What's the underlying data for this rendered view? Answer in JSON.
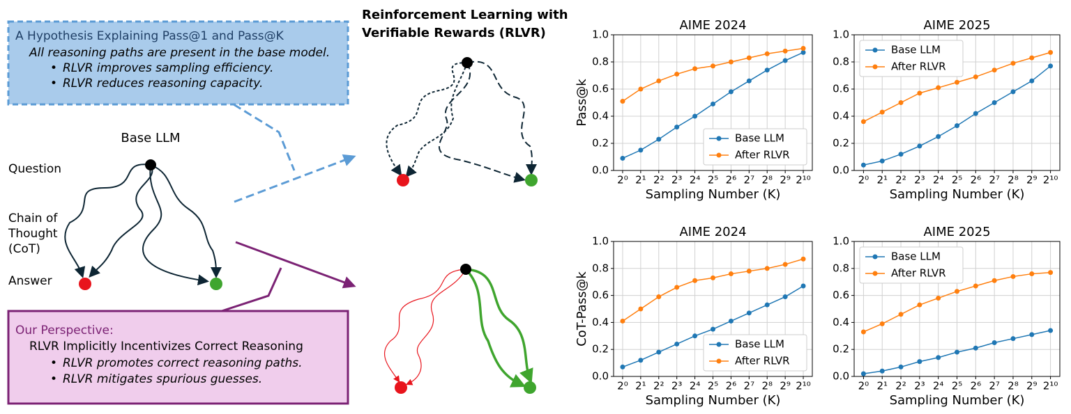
{
  "diagram": {
    "hypothesis": {
      "title": "A Hypothesis Explaining Pass@1 and Pass@K",
      "line": "All reasoning paths are present in the base model.",
      "bullets": [
        "RLVR improves sampling efficiency.",
        "RLVR reduces reasoning capacity."
      ]
    },
    "rlvr_title": [
      "Reinforcement Learning with",
      "Verifiable Rewards (RLVR)"
    ],
    "base_llm": "Base LLM",
    "labels": {
      "question": "Question",
      "cot": [
        "Chain of",
        "Thought",
        "(CoT)"
      ],
      "answer": "Answer"
    },
    "perspective": {
      "title": "Our Perspective:",
      "line": "RLVR Implicitly Incentivizes Correct Reasoning",
      "bullets": [
        "RLVR promotes correct reasoning paths.",
        "RLVR mitigates spurious guesses."
      ]
    }
  },
  "chart_data": [
    {
      "type": "line",
      "title": "AIME 2024",
      "ylabel": "Pass@k",
      "xlabel": "Sampling Number (K)",
      "xscale": "log2",
      "grid": true,
      "legend": "lower right",
      "x": [
        1,
        2,
        4,
        8,
        16,
        32,
        64,
        128,
        256,
        512,
        1024
      ],
      "xlim": [
        0.7071,
        1448.15
      ],
      "xticks": [
        {
          "value": 1,
          "label": "2⁰"
        },
        {
          "value": 2,
          "label": "2¹"
        },
        {
          "value": 4,
          "label": "2²"
        },
        {
          "value": 8,
          "label": "2³"
        },
        {
          "value": 16,
          "label": "2⁴"
        },
        {
          "value": 32,
          "label": "2⁵"
        },
        {
          "value": 64,
          "label": "2⁶"
        },
        {
          "value": 128,
          "label": "2⁷"
        },
        {
          "value": 256,
          "label": "2⁸"
        },
        {
          "value": 512,
          "label": "2⁹"
        },
        {
          "value": 1024,
          "label": "2¹⁰"
        }
      ],
      "ylim": [
        0,
        1
      ],
      "yticks": [
        {
          "value": 0,
          "label": "0.0"
        },
        0.2,
        0.4,
        0.6,
        0.8,
        {
          "value": 1,
          "label": "1.0"
        }
      ],
      "series": [
        {
          "name": "Base LLM",
          "color": "#1f77b4",
          "values": [
            0.09,
            0.15,
            0.23,
            0.32,
            0.4,
            0.49,
            0.58,
            0.66,
            0.74,
            0.81,
            0.87
          ]
        },
        {
          "name": "After RLVR",
          "color": "#ff7f0e",
          "values": [
            0.51,
            0.6,
            0.66,
            0.71,
            0.75,
            0.77,
            0.8,
            0.83,
            0.86,
            0.88,
            0.9
          ]
        }
      ]
    },
    {
      "type": "line",
      "title": "AIME 2025",
      "xlabel": "Sampling Number (K)",
      "xscale": "log2",
      "grid": true,
      "legend": "upper left",
      "x": [
        1,
        2,
        4,
        8,
        16,
        32,
        64,
        128,
        256,
        512,
        1024
      ],
      "xlim": [
        0.7071,
        1448.15
      ],
      "xticks": [
        {
          "value": 1,
          "label": "2⁰"
        },
        {
          "value": 2,
          "label": "2¹"
        },
        {
          "value": 4,
          "label": "2²"
        },
        {
          "value": 8,
          "label": "2³"
        },
        {
          "value": 16,
          "label": "2⁴"
        },
        {
          "value": 32,
          "label": "2⁵"
        },
        {
          "value": 64,
          "label": "2⁶"
        },
        {
          "value": 128,
          "label": "2⁷"
        },
        {
          "value": 256,
          "label": "2⁸"
        },
        {
          "value": 512,
          "label": "2⁹"
        },
        {
          "value": 1024,
          "label": "2¹⁰"
        }
      ],
      "ylim": [
        0,
        1
      ],
      "yticks": [
        {
          "value": 0,
          "label": "0.0"
        },
        0.2,
        0.4,
        0.6,
        0.8,
        {
          "value": 1,
          "label": "1.0"
        }
      ],
      "series": [
        {
          "name": "Base LLM",
          "color": "#1f77b4",
          "values": [
            0.04,
            0.07,
            0.12,
            0.18,
            0.25,
            0.33,
            0.42,
            0.5,
            0.58,
            0.66,
            0.77
          ]
        },
        {
          "name": "After RLVR",
          "color": "#ff7f0e",
          "values": [
            0.36,
            0.43,
            0.5,
            0.57,
            0.61,
            0.65,
            0.69,
            0.74,
            0.79,
            0.83,
            0.87
          ]
        }
      ]
    },
    {
      "type": "line",
      "title": "AIME 2024",
      "ylabel": "CoT-Pass@k",
      "xlabel": "Sampling Number (K)",
      "xscale": "log2",
      "grid": true,
      "legend": "lower right",
      "x": [
        1,
        2,
        4,
        8,
        16,
        32,
        64,
        128,
        256,
        512,
        1024
      ],
      "xlim": [
        0.7071,
        1448.15
      ],
      "xticks": [
        {
          "value": 1,
          "label": "2⁰"
        },
        {
          "value": 2,
          "label": "2¹"
        },
        {
          "value": 4,
          "label": "2²"
        },
        {
          "value": 8,
          "label": "2³"
        },
        {
          "value": 16,
          "label": "2⁴"
        },
        {
          "value": 32,
          "label": "2⁵"
        },
        {
          "value": 64,
          "label": "2⁶"
        },
        {
          "value": 128,
          "label": "2⁷"
        },
        {
          "value": 256,
          "label": "2⁸"
        },
        {
          "value": 512,
          "label": "2⁹"
        },
        {
          "value": 1024,
          "label": "2¹⁰"
        }
      ],
      "ylim": [
        0,
        1
      ],
      "yticks": [
        {
          "value": 0,
          "label": "0.0"
        },
        0.2,
        0.4,
        0.6,
        0.8,
        {
          "value": 1,
          "label": "1.0"
        }
      ],
      "series": [
        {
          "name": "Base LLM",
          "color": "#1f77b4",
          "values": [
            0.07,
            0.12,
            0.18,
            0.24,
            0.3,
            0.35,
            0.41,
            0.47,
            0.53,
            0.59,
            0.67
          ]
        },
        {
          "name": "After RLVR",
          "color": "#ff7f0e",
          "values": [
            0.41,
            0.5,
            0.59,
            0.66,
            0.71,
            0.73,
            0.76,
            0.78,
            0.8,
            0.83,
            0.87
          ]
        }
      ]
    },
    {
      "type": "line",
      "title": "AIME 2025",
      "xlabel": "Sampling Number (K)",
      "xscale": "log2",
      "grid": true,
      "legend": "upper left",
      "x": [
        1,
        2,
        4,
        8,
        16,
        32,
        64,
        128,
        256,
        512,
        1024
      ],
      "xlim": [
        0.7071,
        1448.15
      ],
      "xticks": [
        {
          "value": 1,
          "label": "2⁰"
        },
        {
          "value": 2,
          "label": "2¹"
        },
        {
          "value": 4,
          "label": "2²"
        },
        {
          "value": 8,
          "label": "2³"
        },
        {
          "value": 16,
          "label": "2⁴"
        },
        {
          "value": 32,
          "label": "2⁵"
        },
        {
          "value": 64,
          "label": "2⁶"
        },
        {
          "value": 128,
          "label": "2⁷"
        },
        {
          "value": 256,
          "label": "2⁸"
        },
        {
          "value": 512,
          "label": "2⁹"
        },
        {
          "value": 1024,
          "label": "2¹⁰"
        }
      ],
      "ylim": [
        0,
        1
      ],
      "yticks": [
        {
          "value": 0,
          "label": "0.0"
        },
        0.2,
        0.4,
        0.6,
        0.8,
        {
          "value": 1,
          "label": "1.0"
        }
      ],
      "series": [
        {
          "name": "Base LLM",
          "color": "#1f77b4",
          "values": [
            0.02,
            0.04,
            0.07,
            0.11,
            0.14,
            0.18,
            0.21,
            0.25,
            0.28,
            0.31,
            0.34
          ]
        },
        {
          "name": "After RLVR",
          "color": "#ff7f0e",
          "values": [
            0.33,
            0.39,
            0.46,
            0.53,
            0.58,
            0.63,
            0.67,
            0.71,
            0.74,
            0.76,
            0.77
          ]
        }
      ]
    }
  ]
}
